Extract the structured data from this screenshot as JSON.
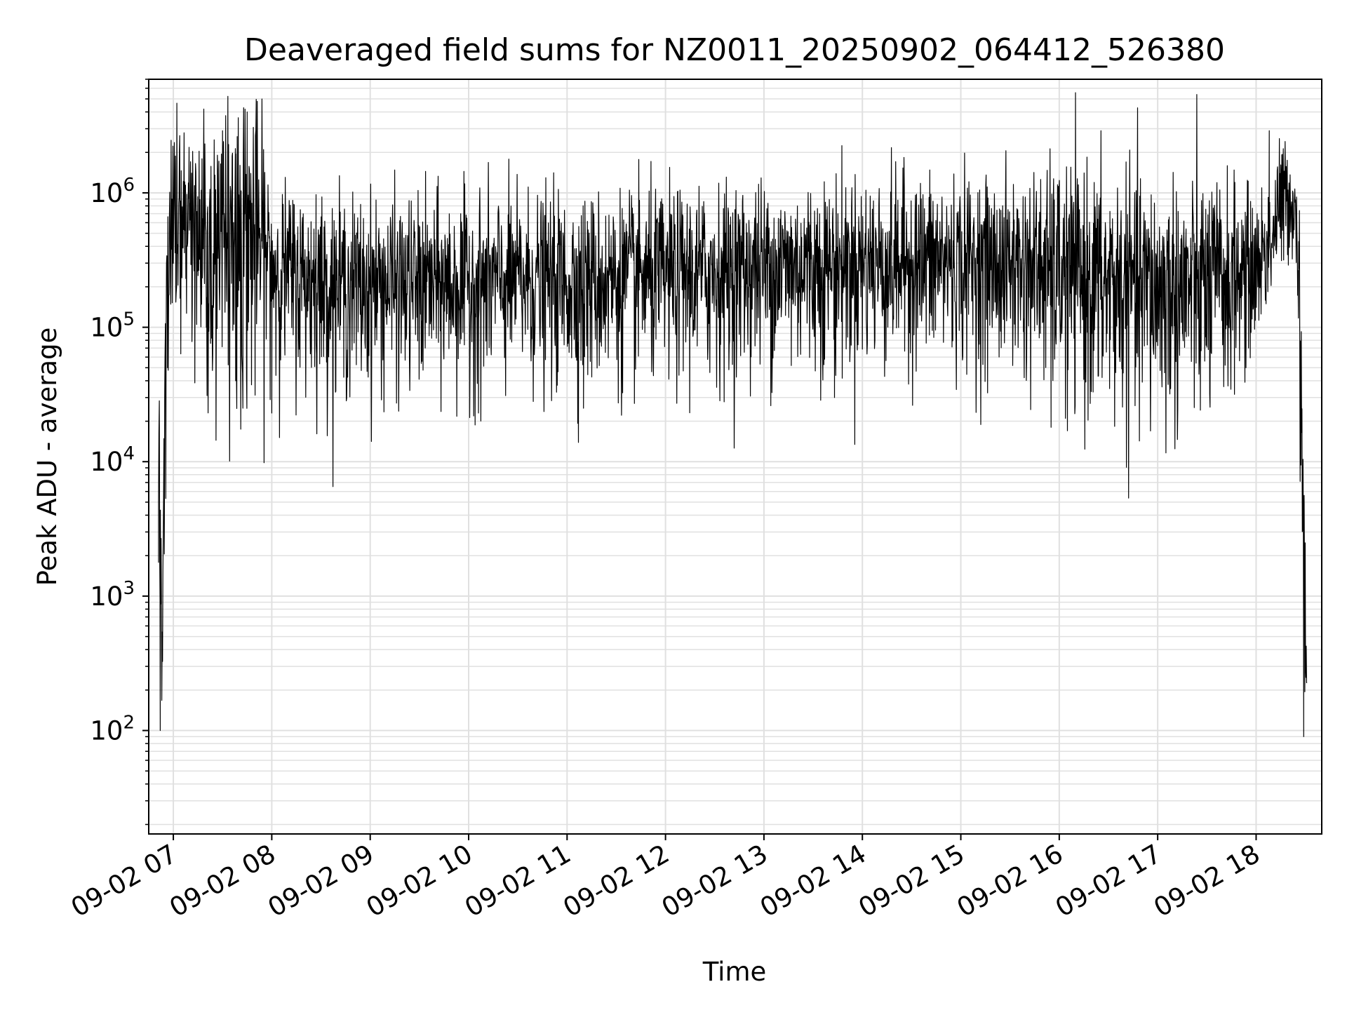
{
  "chart_data": {
    "type": "line",
    "title": "Deaveraged field sums for NZ0011_20250902_064412_526380",
    "xlabel": "Time",
    "ylabel": "Peak ADU - average",
    "yscale": "log",
    "ylim": [
      17,
      7000000
    ],
    "xlim": [
      "09-02 06:45",
      "09-02 18:40"
    ],
    "grid": true,
    "line_color": "#000000",
    "grid_color": "#e0e0e0",
    "x_ticks": [
      {
        "label": "09-02 07",
        "time": "09-02 07:00"
      },
      {
        "label": "09-02 08",
        "time": "09-02 08:00"
      },
      {
        "label": "09-02 09",
        "time": "09-02 09:00"
      },
      {
        "label": "09-02 10",
        "time": "09-02 10:00"
      },
      {
        "label": "09-02 11",
        "time": "09-02 11:00"
      },
      {
        "label": "09-02 12",
        "time": "09-02 12:00"
      },
      {
        "label": "09-02 13",
        "time": "09-02 13:00"
      },
      {
        "label": "09-02 14",
        "time": "09-02 14:00"
      },
      {
        "label": "09-02 15",
        "time": "09-02 15:00"
      },
      {
        "label": "09-02 16",
        "time": "09-02 16:00"
      },
      {
        "label": "09-02 17",
        "time": "09-02 17:00"
      },
      {
        "label": "09-02 18",
        "time": "09-02 18:00"
      }
    ],
    "y_ticks": [
      {
        "base": "10",
        "exp": "2",
        "value": 100
      },
      {
        "base": "10",
        "exp": "3",
        "value": 1000
      },
      {
        "base": "10",
        "exp": "4",
        "value": 10000
      },
      {
        "base": "10",
        "exp": "5",
        "value": 100000
      },
      {
        "base": "10",
        "exp": "6",
        "value": 1000000
      }
    ],
    "series": [
      {
        "envelope": {
          "x": [
            "09-02 06:51",
            "09-02 06:53",
            "09-02 06:55",
            "09-02 06:57",
            "09-02 07:00",
            "09-02 07:10",
            "09-02 07:20",
            "09-02 07:30",
            "09-02 07:40",
            "09-02 07:50",
            "09-02 08:00",
            "09-02 08:30",
            "09-02 09:00",
            "09-02 09:30",
            "09-02 10:00",
            "09-02 10:30",
            "09-02 11:00",
            "09-02 11:30",
            "09-02 12:00",
            "09-02 12:30",
            "09-02 13:00",
            "09-02 13:30",
            "09-02 14:00",
            "09-02 14:30",
            "09-02 15:00",
            "09-02 15:30",
            "09-02 16:00",
            "09-02 16:30",
            "09-02 17:00",
            "09-02 17:20",
            "09-02 17:40",
            "09-02 18:00",
            "09-02 18:10",
            "09-02 18:15",
            "09-02 18:20",
            "09-02 18:25",
            "09-02 18:28",
            "09-02 18:31"
          ],
          "center": [
            5000,
            2000,
            30000,
            300000,
            600000,
            600000,
            500000,
            500000,
            600000,
            500000,
            300000,
            220000,
            220000,
            220000,
            220000,
            230000,
            230000,
            240000,
            250000,
            270000,
            300000,
            310000,
            320000,
            330000,
            320000,
            310000,
            280000,
            220000,
            200000,
            210000,
            230000,
            300000,
            500000,
            900000,
            1000000,
            700000,
            20000,
            100
          ],
          "spread": [
            2.0,
            4.0,
            3.0,
            2.0,
            2.0,
            2.5,
            3.0,
            3.0,
            3.5,
            3.0,
            2.0,
            2.0,
            2.0,
            2.0,
            2.0,
            2.0,
            2.0,
            2.0,
            2.0,
            2.0,
            2.0,
            2.0,
            2.0,
            2.0,
            2.0,
            2.0,
            2.3,
            2.5,
            2.5,
            2.5,
            2.3,
            1.7,
            1.6,
            1.7,
            1.5,
            1.4,
            3.0,
            2.0
          ]
        },
        "peaks": [
          {
            "x": "09-02 06:51",
            "y": 5000
          },
          {
            "x": "09-02 06:52",
            "y": 100
          },
          {
            "x": "09-02 07:30",
            "y": 2900000
          },
          {
            "x": "09-02 07:45",
            "y": 4000000
          },
          {
            "x": "09-02 07:55",
            "y": 2100000
          },
          {
            "x": "09-02 07:38",
            "y": 40000
          },
          {
            "x": "09-02 08:00",
            "y": 23000
          },
          {
            "x": "09-02 08:27",
            "y": 970000
          },
          {
            "x": "09-02 10:06",
            "y": 23000
          },
          {
            "x": "09-02 11:10",
            "y": 25000
          },
          {
            "x": "09-02 13:43",
            "y": 30000
          },
          {
            "x": "09-02 15:55",
            "y": 18000
          },
          {
            "x": "09-02 16:05",
            "y": 17000
          },
          {
            "x": "09-02 18:08",
            "y": 2900000
          },
          {
            "x": "09-02 18:29",
            "y": 90
          }
        ]
      }
    ]
  }
}
